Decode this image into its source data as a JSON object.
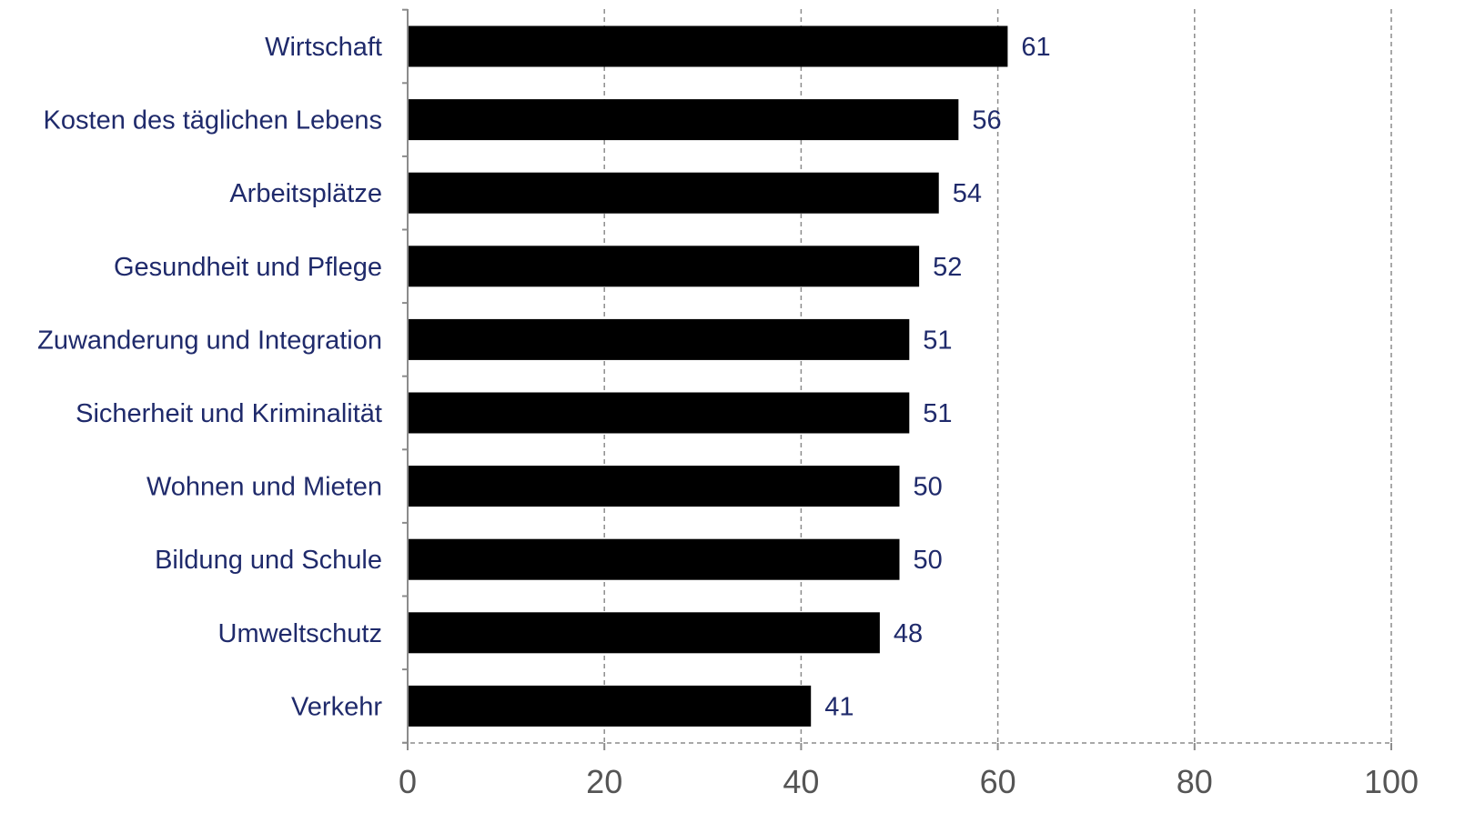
{
  "chart_data": {
    "type": "bar",
    "orientation": "horizontal",
    "title": "",
    "xlabel": "",
    "ylabel": "",
    "categories": [
      "Wirtschaft",
      "Kosten des täglichen Lebens",
      "Arbeitsplätze",
      "Gesundheit und Pflege",
      "Zuwanderung und Integration",
      "Sicherheit und Kriminalität",
      "Wohnen und Mieten",
      "Bildung und Schule",
      "Umweltschutz",
      "Verkehr"
    ],
    "values": [
      61,
      56,
      54,
      52,
      51,
      51,
      50,
      50,
      48,
      41
    ],
    "xlim": [
      0,
      100
    ],
    "xticks": [
      0,
      20,
      40,
      60,
      80,
      100
    ],
    "grid": "vertical dashed",
    "legend": "none",
    "colors": {
      "bar": "#000000",
      "label": "#1f2a6b",
      "tick": "#555555",
      "grid": "#8c8c8c"
    }
  }
}
